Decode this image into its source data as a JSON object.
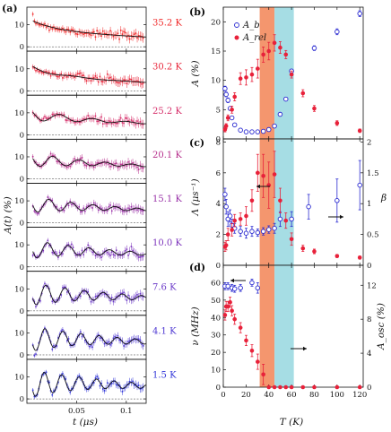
{
  "panel_labels": {
    "a": "(a)",
    "b": "(b)",
    "c": "(c)",
    "d": "(d)"
  },
  "panel_a": {
    "ylabel": "A(t) (%)",
    "xlabel": "t (μs)",
    "y_ticks": [
      "0",
      "10"
    ],
    "x_ticks": [
      "0.05",
      "0.1"
    ],
    "xlim": [
      0,
      0.12
    ]
  },
  "panel_b": {
    "ylabel": "A (%)",
    "y_ticks": [
      "0",
      "5",
      "10",
      "15",
      "20"
    ],
    "legend": [
      {
        "label": "A_b",
        "marker": "open-circle",
        "color": "#2b2bd1"
      },
      {
        "label": "A_rel",
        "marker": "filled-circle",
        "color": "#e8213a"
      }
    ]
  },
  "panel_c": {
    "ylabel": "Λ (μs⁻¹)",
    "ylabel_right": "β",
    "y_ticks": [
      "0",
      "2",
      "4",
      "6",
      "8"
    ],
    "y_ticks_right": [
      "0",
      "0.5",
      "1",
      "1.5",
      "2"
    ]
  },
  "panel_d": {
    "ylabel": "ν (MHz)",
    "ylabel_right": "A_osc (%)",
    "y_ticks": [
      "0",
      "10",
      "20",
      "30",
      "40",
      "50",
      "60"
    ],
    "y_ticks_right": [
      "0",
      "4",
      "8",
      "12"
    ],
    "x_ticks": [
      "0",
      "20",
      "40",
      "60",
      "80",
      "100",
      "120"
    ],
    "xlabel": "T (K)"
  },
  "colors": {
    "red": "#e8213a",
    "blue": "#2b2bd1",
    "orange": "#f4966e",
    "cyan": "#a6dde4"
  },
  "chart_data": [
    {
      "type": "line",
      "panel": "a",
      "xlabel": "t (μs)",
      "ylabel": "A(t) (%)",
      "xlim": [
        0,
        0.12
      ],
      "ylim": [
        -2,
        18
      ],
      "series": [
        {
          "name": "35.2 K",
          "color": "#f02a2a",
          "A0": 13,
          "base": 8.0,
          "osc": 0.0,
          "freq": 0,
          "damp": 25,
          "relax": 5,
          "noise": 1.8
        },
        {
          "name": "30.2 K",
          "color": "#e8283c",
          "A0": 12.5,
          "base": 7.8,
          "osc": 1.0,
          "freq": 20,
          "damp": 30,
          "relax": 6,
          "noise": 1.8
        },
        {
          "name": "25.2 K",
          "color": "#d62f6a",
          "A0": 12.5,
          "base": 8.5,
          "osc": 3.0,
          "freq": 30,
          "damp": 20,
          "relax": 4,
          "noise": 1.7
        },
        {
          "name": "20.1 K",
          "color": "#b7318d",
          "A0": 12.5,
          "base": 8.5,
          "osc": 3.5,
          "freq": 38,
          "damp": 18,
          "relax": 3,
          "noise": 1.7
        },
        {
          "name": "15.1 K",
          "color": "#9a33a8",
          "A0": 12.5,
          "base": 8.5,
          "osc": 4.0,
          "freq": 45,
          "damp": 17,
          "relax": 3,
          "noise": 1.6
        },
        {
          "name": "10.0 K",
          "color": "#7d35bc",
          "A0": 12.5,
          "base": 8.5,
          "osc": 4.5,
          "freq": 48,
          "damp": 16,
          "relax": 3,
          "noise": 1.6
        },
        {
          "name": "7.6 K",
          "color": "#6a38c8",
          "A0": 13,
          "base": 8.5,
          "osc": 5.5,
          "freq": 52,
          "damp": 15,
          "relax": 3,
          "noise": 1.6
        },
        {
          "name": "4.1 K",
          "color": "#4d37d2",
          "A0": 13,
          "base": 8.5,
          "osc": 6.0,
          "freq": 55,
          "damp": 15,
          "relax": 3,
          "noise": 1.5
        },
        {
          "name": "1.5 K",
          "color": "#3136d8",
          "A0": 13,
          "base": 8.5,
          "osc": 6.5,
          "freq": 57,
          "damp": 15,
          "relax": 3,
          "noise": 1.5
        }
      ]
    },
    {
      "type": "scatter",
      "panel": "b",
      "ylabel": "A (%)",
      "xlim": [
        0,
        123
      ],
      "ylim": [
        0,
        22.5
      ],
      "shaded_regions": [
        {
          "x": [
            32,
            45
          ],
          "color": "#f4966e"
        },
        {
          "x": [
            45,
            62
          ],
          "color": "#a6dde4"
        }
      ],
      "series": [
        {
          "name": "A_b",
          "marker": "open",
          "color": "#2b2bd1",
          "points": [
            [
              1.5,
              8.6,
              0.4
            ],
            [
              2.5,
              7.6,
              0.4
            ],
            [
              4.1,
              6.6,
              0.4
            ],
            [
              6,
              5.2,
              0.3
            ],
            [
              7.6,
              3.6,
              0.3
            ],
            [
              10,
              2.4,
              0.3
            ],
            [
              15.1,
              1.5,
              0.3
            ],
            [
              20.1,
              1.2,
              0.3
            ],
            [
              25.2,
              1.2,
              0.3
            ],
            [
              30.2,
              1.2,
              0.3
            ],
            [
              35.2,
              1.3,
              0.3
            ],
            [
              40,
              1.6,
              0.3
            ],
            [
              45,
              2.2,
              0.3
            ],
            [
              50,
              4.2,
              0.3
            ],
            [
              55,
              6.8,
              0.3
            ],
            [
              60,
              11.6,
              0.3
            ],
            [
              80,
              15.5,
              0.4
            ],
            [
              100,
              18.3,
              0.5
            ],
            [
              120,
              21.4,
              0.5
            ]
          ]
        },
        {
          "name": "A_rel",
          "marker": "filled",
          "color": "#e8213a",
          "points": [
            [
              1.5,
              1.6,
              0.4
            ],
            [
              2.5,
              2.2,
              0.4
            ],
            [
              4.1,
              3.6,
              0.5
            ],
            [
              7.6,
              5.0,
              0.6
            ],
            [
              10,
              7.2,
              0.7
            ],
            [
              15.1,
              10.3,
              1.0
            ],
            [
              20.1,
              10.5,
              1.3
            ],
            [
              25.2,
              11.0,
              1.2
            ],
            [
              30.2,
              12.0,
              1.6
            ],
            [
              35.2,
              14.4,
              1.3
            ],
            [
              40,
              15.0,
              1.5
            ],
            [
              45,
              16.4,
              1.4
            ],
            [
              50,
              15.6,
              1.0
            ],
            [
              55,
              14.4,
              0.7
            ],
            [
              60,
              11.0,
              0.6
            ],
            [
              70,
              7.8,
              0.6
            ],
            [
              80,
              5.2,
              0.5
            ],
            [
              100,
              2.7,
              0.4
            ],
            [
              120,
              1.4,
              0.3
            ]
          ]
        }
      ]
    },
    {
      "type": "scatter",
      "panel": "c",
      "ylabel": "Λ (μs⁻¹)",
      "ylabel_right": "β",
      "xlim": [
        0,
        123
      ],
      "ylim": [
        0,
        8.2
      ],
      "ylim_right": [
        0,
        2.05
      ],
      "series": [
        {
          "name": "β",
          "marker": "open",
          "color": "#2b2bd1",
          "axis": "right",
          "points": [
            [
              1.5,
              1.15,
              0.1
            ],
            [
              2.5,
              0.95,
              0.12
            ],
            [
              4.1,
              0.75,
              0.12
            ],
            [
              6,
              0.8,
              0.1
            ],
            [
              7.6,
              0.65,
              0.1
            ],
            [
              10,
              0.6,
              0.08
            ],
            [
              15.1,
              0.55,
              0.08
            ],
            [
              20.1,
              0.52,
              0.08
            ],
            [
              25.2,
              0.55,
              0.08
            ],
            [
              30.2,
              0.53,
              0.06
            ],
            [
              35.2,
              0.55,
              0.06
            ],
            [
              40,
              0.58,
              0.06
            ],
            [
              45,
              0.6,
              0.08
            ],
            [
              50,
              0.75,
              0.12
            ],
            [
              60,
              0.75,
              0.12
            ],
            [
              75,
              0.95,
              0.2
            ],
            [
              100,
              1.05,
              0.35
            ],
            [
              120,
              1.3,
              0.4
            ]
          ]
        },
        {
          "name": "Λ",
          "marker": "filled",
          "color": "#e8213a",
          "axis": "left",
          "points": [
            [
              1.5,
              1.2,
              0.3
            ],
            [
              2.5,
              1.3,
              0.3
            ],
            [
              4.1,
              2.0,
              0.4
            ],
            [
              7.6,
              2.3,
              0.4
            ],
            [
              10,
              2.9,
              0.4
            ],
            [
              15.1,
              3.0,
              0.4
            ],
            [
              20.1,
              3.2,
              0.6
            ],
            [
              25.2,
              4.2,
              0.7
            ],
            [
              30.2,
              6.0,
              1.2
            ],
            [
              35.2,
              5.8,
              1.4
            ],
            [
              40,
              5.2,
              1.5
            ],
            [
              45,
              5.9,
              1.5
            ],
            [
              50,
              4.2,
              0.8
            ],
            [
              55,
              2.9,
              0.5
            ],
            [
              60,
              1.7,
              0.4
            ],
            [
              70,
              1.1,
              0.2
            ],
            [
              80,
              0.9,
              0.15
            ],
            [
              100,
              0.6,
              0.1
            ],
            [
              120,
              0.5,
              0.1
            ]
          ]
        }
      ]
    },
    {
      "type": "scatter",
      "panel": "d",
      "xlabel": "T (K)",
      "ylabel": "ν (MHz)",
      "ylabel_right": "A_osc (%)",
      "xlim": [
        0,
        123
      ],
      "ylim": [
        0,
        70
      ],
      "ylim_right": [
        0,
        14.35
      ],
      "series": [
        {
          "name": "ν",
          "marker": "open",
          "color": "#2b2bd1",
          "axis": "left",
          "points": [
            [
              1.5,
              58,
              2
            ],
            [
              4.1,
              58,
              2
            ],
            [
              7.6,
              57,
              2
            ],
            [
              10,
              56.5,
              2
            ],
            [
              15.1,
              57,
              2
            ],
            [
              25.2,
              60,
              2
            ],
            [
              30.2,
              57,
              3
            ]
          ]
        },
        {
          "name": "A_osc",
          "marker": "filled",
          "color": "#e8213a",
          "axis": "right",
          "points": [
            [
              1.5,
              8.5,
              0.6
            ],
            [
              2.5,
              9.5,
              0.6
            ],
            [
              4.1,
              9.5,
              0.6
            ],
            [
              6,
              10.0,
              0.6
            ],
            [
              7.6,
              9.0,
              0.6
            ],
            [
              10,
              8.0,
              0.6
            ],
            [
              15.1,
              7.0,
              0.6
            ],
            [
              20.1,
              5.5,
              0.6
            ],
            [
              25.2,
              4.3,
              0.7
            ],
            [
              30.2,
              3.0,
              0.9
            ],
            [
              35.2,
              1.5,
              1.2
            ],
            [
              40,
              0,
              0
            ],
            [
              45,
              0,
              0
            ],
            [
              50,
              0,
              0
            ],
            [
              55,
              0,
              0
            ],
            [
              60,
              0,
              0
            ],
            [
              70,
              0,
              0
            ],
            [
              80,
              0,
              0
            ],
            [
              100,
              0,
              0
            ],
            [
              120,
              0,
              0
            ]
          ]
        }
      ]
    }
  ]
}
